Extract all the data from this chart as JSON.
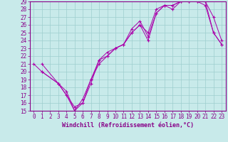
{
  "xlabel": "Windchill (Refroidissement éolien,°C)",
  "bg_color": "#c8eaea",
  "line_color": "#aa00aa",
  "xlim": [
    -0.5,
    23.5
  ],
  "ylim": [
    15,
    29
  ],
  "xticks": [
    0,
    1,
    2,
    3,
    4,
    5,
    6,
    7,
    8,
    9,
    10,
    11,
    12,
    13,
    14,
    15,
    16,
    17,
    18,
    19,
    20,
    21,
    22,
    23
  ],
  "yticks": [
    15,
    16,
    17,
    18,
    19,
    20,
    21,
    22,
    23,
    24,
    25,
    26,
    27,
    28,
    29
  ],
  "series1_x": [
    1,
    3,
    4,
    5,
    6,
    7,
    8,
    9,
    10,
    11,
    12,
    13,
    14,
    15,
    16,
    17,
    18,
    19,
    20,
    21,
    22,
    23
  ],
  "series1_y": [
    21,
    18.5,
    17,
    15,
    16,
    18.5,
    21.5,
    22,
    23,
    23.5,
    25,
    26,
    24,
    27.5,
    28.5,
    28.5,
    29,
    29,
    29,
    28.5,
    25,
    23.5
  ],
  "series2_x": [
    1,
    3,
    4,
    5,
    6,
    7,
    8,
    9,
    10,
    11,
    12,
    13,
    14,
    15,
    16,
    17,
    18,
    19,
    20,
    21,
    22,
    23
  ],
  "series2_y": [
    20,
    18.5,
    17.5,
    15,
    16.5,
    19,
    21,
    22,
    23,
    23.5,
    25.5,
    26.5,
    24.5,
    27.5,
    28.5,
    28.5,
    29,
    29,
    29,
    29,
    27,
    24
  ],
  "series3_x": [
    0,
    1,
    3,
    5,
    6,
    7,
    8,
    9,
    10,
    11,
    12,
    13,
    14,
    15,
    16,
    17,
    18,
    19,
    20,
    21,
    22,
    23
  ],
  "series3_y": [
    21,
    20,
    18.5,
    15.5,
    16,
    19,
    21.5,
    22.5,
    23,
    23.5,
    25,
    26,
    25,
    28,
    28.5,
    28,
    29,
    29,
    29,
    29,
    25,
    23.5
  ],
  "grid_color": "#9ecece",
  "marker": "+",
  "markersize": 3.5,
  "linewidth": 0.7,
  "tick_fontsize": 5.5,
  "xlabel_fontsize": 6.0,
  "label_color": "#880088"
}
